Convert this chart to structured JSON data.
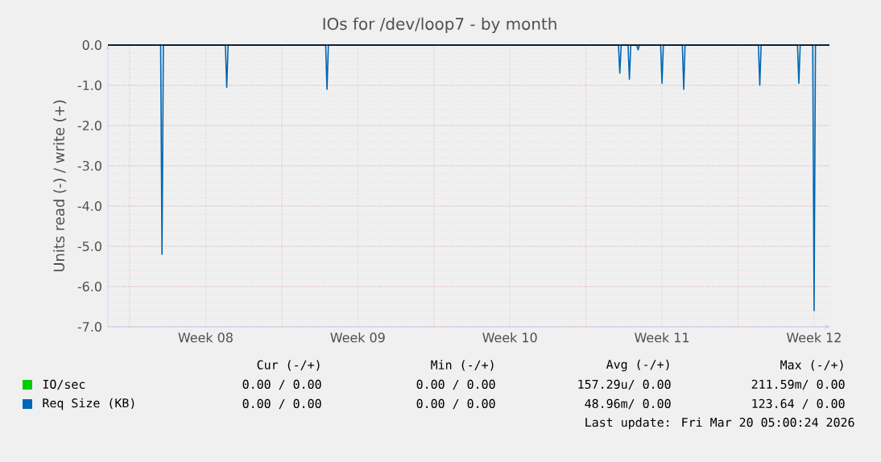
{
  "chart_data": {
    "type": "line",
    "title": "IOs for /dev/loop7 - by month",
    "ylabel": "Units read (-) / write (+)",
    "xlim": [
      "2026-02-15T00:00",
      "2026-03-20T05:00"
    ],
    "ylim": [
      -7,
      0
    ],
    "xticks": [
      {
        "value": "2026-02-16",
        "label": null
      },
      {
        "value": "2026-02-19T12:00",
        "label": "Week 08"
      },
      {
        "value": "2026-02-23",
        "label": null
      },
      {
        "value": "2026-02-26T12:00",
        "label": "Week 09"
      },
      {
        "value": "2026-03-02",
        "label": null
      },
      {
        "value": "2026-03-05T12:00",
        "label": "Week 10"
      },
      {
        "value": "2026-03-09",
        "label": null
      },
      {
        "value": "2026-03-12T12:00",
        "label": "Week 11"
      },
      {
        "value": "2026-03-16",
        "label": null
      },
      {
        "value": "2026-03-19T12:00",
        "label": "Week 12"
      }
    ],
    "yticks": [
      {
        "value": 0,
        "label": "0.0"
      },
      {
        "value": -1,
        "label": "-1.0"
      },
      {
        "value": -2,
        "label": "-2.0"
      },
      {
        "value": -3,
        "label": "-3.0"
      },
      {
        "value": -4,
        "label": "-4.0"
      },
      {
        "value": -5,
        "label": "-5.0"
      },
      {
        "value": -6,
        "label": "-6.0"
      },
      {
        "value": -7,
        "label": "-7.0"
      }
    ],
    "grid": true,
    "legend": "bottom left",
    "ref_lines": [
      {
        "axis": "y",
        "value": 0,
        "color": "#000000"
      }
    ],
    "series": [
      {
        "name": "IO/sec",
        "color": "#00cc00"
      },
      {
        "name": "Req Size (KB)",
        "color": "#0066b3",
        "x": [
          "2026-02-15T00:00",
          "2026-02-17T10:15",
          "2026-02-17T11:45",
          "2026-02-17T13:15",
          "2026-02-20T09:45",
          "2026-02-20T11:15",
          "2026-02-20T12:45",
          "2026-02-25T00:30",
          "2026-02-25T02:00",
          "2026-02-25T03:30",
          "2026-03-10T11:55",
          "2026-03-10T13:25",
          "2026-03-10T14:55",
          "2026-03-10T22:30",
          "2026-03-11T00:00",
          "2026-03-11T01:30",
          "2026-03-11T08:05",
          "2026-03-11T09:35",
          "2026-03-11T11:05",
          "2026-03-12T10:30",
          "2026-03-12T12:00",
          "2026-03-12T13:30",
          "2026-03-13T10:30",
          "2026-03-13T12:00",
          "2026-03-13T13:30",
          "2026-03-16T22:30",
          "2026-03-17T00:00",
          "2026-03-17T01:30",
          "2026-03-18T17:40",
          "2026-03-18T19:10",
          "2026-03-18T20:40",
          "2026-03-19T10:30",
          "2026-03-19T12:00",
          "2026-03-19T13:30",
          "2026-03-20T05:00"
        ],
        "values": [
          0,
          0,
          -5.2,
          0,
          0,
          -1.05,
          0,
          0,
          -1.1,
          0,
          0,
          -0.7,
          0,
          0,
          -0.85,
          0,
          0,
          -0.12,
          0,
          0,
          -0.95,
          0,
          0,
          -1.1,
          0,
          0,
          -1.0,
          0,
          0,
          -0.95,
          0,
          0,
          -6.6,
          0,
          0
        ]
      }
    ],
    "annotations": [
      "Cur (-/+)",
      "Min (-/+)",
      "Avg (-/+)",
      "Max (-/+)",
      "0.00 /  0.00",
      "0.00 /  0.00",
      "157.29u/  0.00",
      "211.59m/  0.00",
      "0.00 /  0.00",
      "0.00 /  0.00",
      "48.96m/  0.00",
      "123.64 /  0.00",
      "Last update: Fri Mar 20 05:00:24 2026"
    ]
  }
}
